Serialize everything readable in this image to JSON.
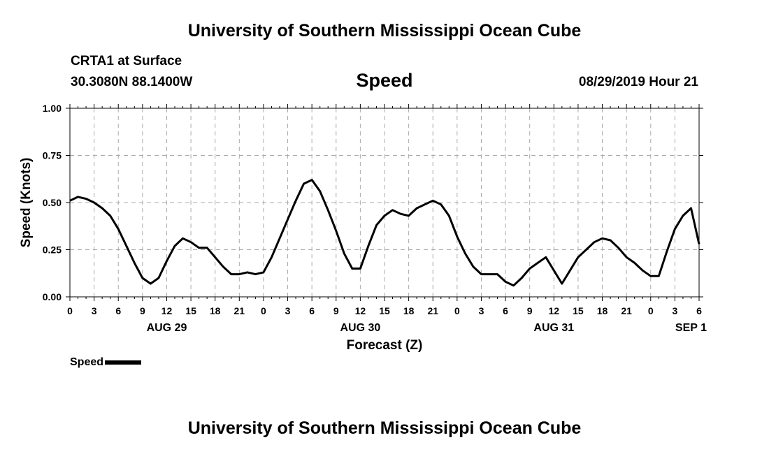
{
  "header": {
    "institution": "University of Southern Mississippi Ocean Cube",
    "station": "CRTA1 at Surface",
    "coords": "30.3080N 88.1400W",
    "timestamp": "08/29/2019 Hour 21"
  },
  "footer": {
    "institution": "University of Southern Mississippi Ocean Cube"
  },
  "chart_data": {
    "type": "line",
    "title": "Speed",
    "xlabel": "Forecast (Z)",
    "ylabel": "Speed (Knots)",
    "ylim": [
      0,
      1.0
    ],
    "y_ticks": [
      "0.00",
      "0.25",
      "0.50",
      "0.75",
      "1.00"
    ],
    "x_range_hours": [
      0,
      78
    ],
    "x_ticks": [
      "0",
      "3",
      "6",
      "9",
      "12",
      "15",
      "18",
      "21",
      "0",
      "3",
      "6",
      "9",
      "12",
      "15",
      "18",
      "21",
      "0",
      "3",
      "6",
      "9",
      "12",
      "15",
      "18",
      "21",
      "0",
      "3",
      "6"
    ],
    "dates": [
      {
        "label": "AUG 29",
        "hour": 12
      },
      {
        "label": "AUG 30",
        "hour": 36
      },
      {
        "label": "AUG 31",
        "hour": 60
      },
      {
        "label": "SEP 1",
        "hour": 77
      }
    ],
    "grid": true,
    "legend_position": "bottom-left",
    "series": [
      {
        "name": "Speed",
        "color": "#000000",
        "x": [
          0,
          1,
          2,
          3,
          4,
          5,
          6,
          7,
          8,
          9,
          10,
          11,
          12,
          13,
          14,
          15,
          16,
          17,
          18,
          19,
          20,
          21,
          22,
          23,
          24,
          25,
          26,
          27,
          28,
          29,
          30,
          31,
          32,
          33,
          34,
          35,
          36,
          37,
          38,
          39,
          40,
          41,
          42,
          43,
          44,
          45,
          46,
          47,
          48,
          49,
          50,
          51,
          52,
          53,
          54,
          55,
          56,
          57,
          58,
          59,
          60,
          61,
          62,
          63,
          64,
          65,
          66,
          67,
          68,
          69,
          70,
          71,
          72,
          73,
          74,
          75,
          76,
          77,
          78
        ],
        "y": [
          0.51,
          0.53,
          0.52,
          0.5,
          0.47,
          0.43,
          0.36,
          0.27,
          0.18,
          0.1,
          0.07,
          0.1,
          0.19,
          0.27,
          0.31,
          0.29,
          0.26,
          0.26,
          0.21,
          0.16,
          0.12,
          0.12,
          0.13,
          0.12,
          0.13,
          0.21,
          0.31,
          0.41,
          0.51,
          0.6,
          0.62,
          0.56,
          0.46,
          0.35,
          0.23,
          0.15,
          0.15,
          0.27,
          0.38,
          0.43,
          0.46,
          0.44,
          0.43,
          0.47,
          0.49,
          0.51,
          0.49,
          0.43,
          0.32,
          0.23,
          0.16,
          0.12,
          0.12,
          0.12,
          0.08,
          0.06,
          0.1,
          0.15,
          0.18,
          0.21,
          0.14,
          0.07,
          0.14,
          0.21,
          0.25,
          0.29,
          0.31,
          0.3,
          0.26,
          0.21,
          0.18,
          0.14,
          0.11,
          0.11,
          0.24,
          0.36,
          0.43,
          0.47,
          0.28
        ]
      }
    ]
  }
}
